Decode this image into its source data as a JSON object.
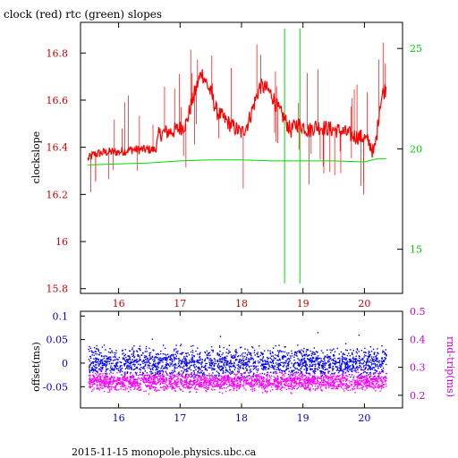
{
  "chart_data": [
    {
      "type": "line",
      "title": "clock (red) rtc (green) slopes",
      "ylabel": "clockslope",
      "xlim": [
        15.38,
        20.62
      ],
      "ylim": [
        15.78,
        16.93
      ],
      "y2lim": [
        12.8,
        26.3
      ],
      "x_ticks": [
        "16",
        "17",
        "18",
        "19",
        "20"
      ],
      "y_ticks": [
        "15.8",
        "16",
        "16.2",
        "16.4",
        "16.6",
        "16.8"
      ],
      "y2_ticks": [
        "15",
        "20",
        "25"
      ],
      "grid": false,
      "colors": {
        "clock": "#ff0000",
        "rtc": "#00dd00",
        "left_axis": "#cc0000",
        "right_axis": "#00cc00"
      },
      "series": [
        {
          "name": "clock",
          "axis": "left",
          "x": [
            15.5,
            15.6,
            15.8,
            16.0,
            16.2,
            16.4,
            16.6,
            16.65,
            16.7,
            16.9,
            17.0,
            17.1,
            17.2,
            17.3,
            17.35,
            17.5,
            17.6,
            17.8,
            18.0,
            18.1,
            18.2,
            18.3,
            18.4,
            18.5,
            18.6,
            18.7,
            18.8,
            18.9,
            19.0,
            19.1,
            19.2,
            19.4,
            19.6,
            19.8,
            20.0,
            20.1,
            20.15,
            20.2,
            20.25,
            20.3,
            20.35
          ],
          "y": [
            16.35,
            16.37,
            16.38,
            16.38,
            16.39,
            16.39,
            16.39,
            16.45,
            16.46,
            16.47,
            16.48,
            16.5,
            16.6,
            16.68,
            16.72,
            16.63,
            16.55,
            16.5,
            16.46,
            16.5,
            16.58,
            16.66,
            16.65,
            16.62,
            16.56,
            16.52,
            16.47,
            16.5,
            16.49,
            16.47,
            16.49,
            16.48,
            16.47,
            16.45,
            16.44,
            16.41,
            16.37,
            16.45,
            16.58,
            16.63,
            16.65
          ]
        },
        {
          "name": "rtc",
          "axis": "right",
          "x": [
            15.5,
            16.0,
            16.5,
            17.0,
            17.5,
            18.0,
            18.5,
            19.0,
            19.5,
            20.0,
            20.2,
            20.35
          ],
          "y": [
            19.2,
            19.25,
            19.3,
            19.4,
            19.45,
            19.45,
            19.4,
            19.4,
            19.4,
            19.35,
            19.5,
            19.5
          ]
        }
      ]
    },
    {
      "type": "scatter",
      "ylabel": "offset(ms)",
      "y2label": "rnd-trip(ms)",
      "xlim": [
        15.38,
        20.62
      ],
      "ylim": [
        -0.095,
        0.11
      ],
      "y2lim": [
        0.155,
        0.5
      ],
      "x_ticks": [
        "16",
        "17",
        "18",
        "19",
        "20"
      ],
      "y_ticks": [
        "-0.05",
        "0",
        "0.05",
        "0.1"
      ],
      "y2_ticks": [
        "0.2",
        "0.3",
        "0.4",
        "0.5"
      ],
      "grid": false,
      "colors": {
        "offset": "#0000ff",
        "rnd_trip": "#ff00ff",
        "left_axis": "#0000cc",
        "right_axis": "#cc00cc"
      },
      "series": [
        {
          "name": "offset",
          "axis": "left",
          "x": [
            15.5,
            16.0,
            16.5,
            17.0,
            17.5,
            18.0,
            18.5,
            19.0,
            19.5,
            20.0,
            20.35
          ],
          "y": [
            0.002,
            0.001,
            0.002,
            0.001,
            0.002,
            0.001,
            0.002,
            0.001,
            0.002,
            0.001,
            0.002
          ],
          "spread": 0.03
        },
        {
          "name": "rnd-trip",
          "axis": "right",
          "x": [
            15.5,
            16.0,
            16.5,
            17.0,
            17.5,
            18.0,
            18.5,
            19.0,
            19.5,
            20.0,
            20.35
          ],
          "y": [
            0.25,
            0.25,
            0.25,
            0.25,
            0.25,
            0.25,
            0.25,
            0.25,
            0.25,
            0.25,
            0.25
          ],
          "spread": 0.03
        }
      ]
    }
  ],
  "footer": "2015-11-15 monopole.physics.ubc.ca"
}
